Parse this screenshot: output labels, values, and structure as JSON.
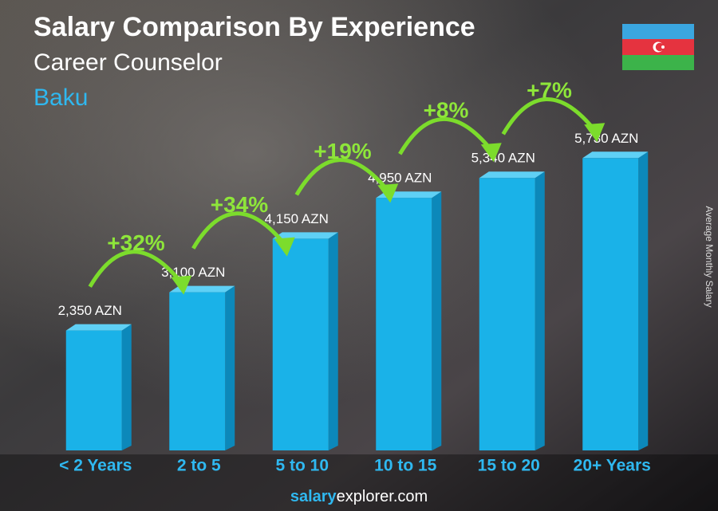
{
  "chart_data": {
    "type": "bar",
    "title": "Salary Comparison By Experience",
    "subtitle": "Career Counselor",
    "location": "Baku",
    "y_axis_label": "Average Monthly Salary",
    "categories": [
      "< 2 Years",
      "2 to 5",
      "5 to 10",
      "10 to 15",
      "15 to 20",
      "20+ Years"
    ],
    "values": [
      2350,
      3100,
      4150,
      4950,
      5340,
      5730
    ],
    "value_labels": [
      "2,350 AZN",
      "3,100 AZN",
      "4,150 AZN",
      "4,950 AZN",
      "5,340 AZN",
      "5,730 AZN"
    ],
    "annotations": [
      "+32%",
      "+34%",
      "+19%",
      "+8%",
      "+7%"
    ],
    "color": "#1ab2e8",
    "source": [
      "salary",
      "explorer.com"
    ]
  }
}
